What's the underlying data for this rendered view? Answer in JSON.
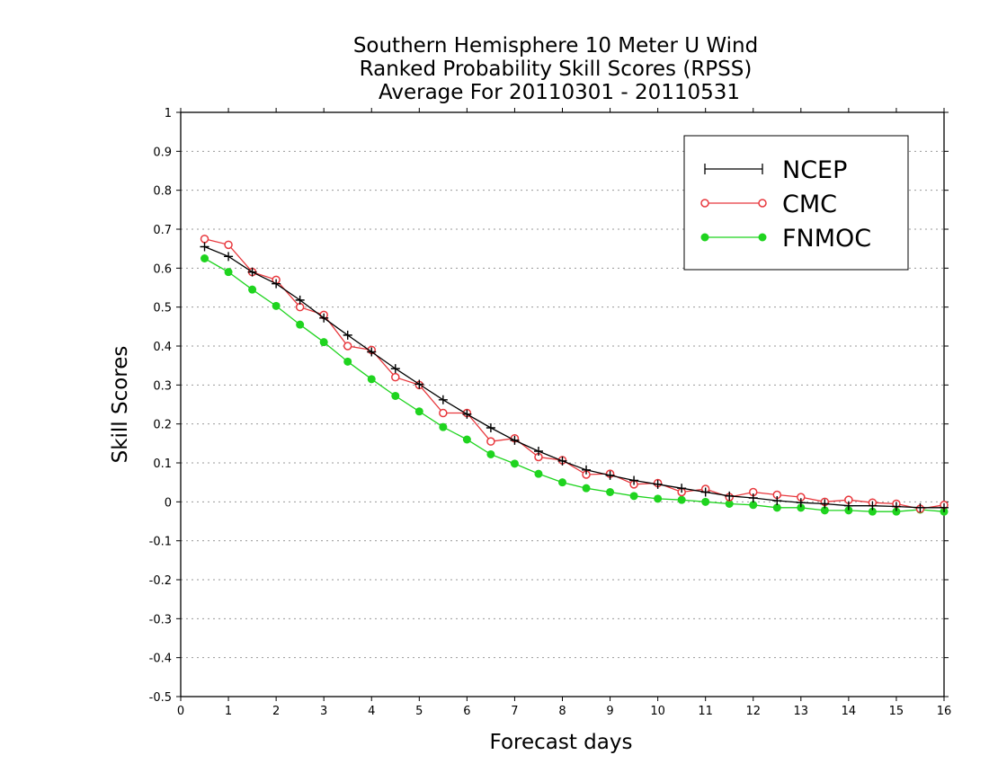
{
  "chart_data": {
    "type": "line",
    "title_lines": [
      "Southern Hemisphere 10 Meter U Wind",
      "Ranked Probability Skill Scores (RPSS)",
      "Average For 20110301 - 20110531"
    ],
    "xlabel": "Forecast days",
    "ylabel": "Skill Scores",
    "xlim": [
      0,
      16
    ],
    "ylim": [
      -0.5,
      1
    ],
    "xticks": [
      "0",
      "1",
      "2",
      "3",
      "4",
      "5",
      "6",
      "7",
      "8",
      "9",
      "10",
      "11",
      "12",
      "13",
      "14",
      "15",
      "16"
    ],
    "yticks": [
      "-0.5",
      "-0.4",
      "-0.3",
      "-0.2",
      "-0.1",
      "0",
      "0.1",
      "0.2",
      "0.3",
      "0.4",
      "0.5",
      "0.6",
      "0.7",
      "0.8",
      "0.9",
      "1"
    ],
    "grid": "horizontal-dotted",
    "legend_position": "top-right",
    "x": [
      0.5,
      1,
      1.5,
      2,
      2.5,
      3,
      3.5,
      4,
      4.5,
      5,
      5.5,
      6,
      6.5,
      7,
      7.5,
      8,
      8.5,
      9,
      9.5,
      10,
      10.5,
      11,
      11.5,
      12,
      12.5,
      13,
      13.5,
      14,
      14.5,
      15,
      15.5,
      16
    ],
    "series": [
      {
        "name": "NCEP",
        "color": "#000000",
        "marker": "plus",
        "values": [
          0.655,
          0.63,
          0.59,
          0.56,
          0.518,
          0.472,
          0.428,
          0.385,
          0.342,
          0.302,
          0.262,
          0.225,
          0.19,
          0.158,
          0.13,
          0.105,
          0.082,
          0.068,
          0.055,
          0.045,
          0.035,
          0.025,
          0.015,
          0.01,
          0.003,
          -0.002,
          -0.005,
          -0.01,
          -0.01,
          -0.012,
          -0.015,
          -0.015
        ]
      },
      {
        "name": "CMC",
        "color": "#e8383d",
        "marker": "open-circle",
        "values": [
          0.675,
          0.66,
          0.59,
          0.57,
          0.5,
          0.48,
          0.4,
          0.39,
          0.32,
          0.3,
          0.228,
          0.228,
          0.155,
          0.163,
          0.115,
          0.107,
          0.07,
          0.072,
          0.045,
          0.048,
          0.025,
          0.033,
          0.012,
          0.025,
          0.018,
          0.012,
          0.0,
          0.005,
          -0.002,
          -0.005,
          -0.018,
          -0.008
        ]
      },
      {
        "name": "FNMOC",
        "color": "#1fd41f",
        "marker": "filled-circle",
        "values": [
          0.625,
          0.59,
          0.545,
          0.503,
          0.455,
          0.41,
          0.36,
          0.315,
          0.272,
          0.232,
          0.192,
          0.16,
          0.122,
          0.098,
          0.072,
          0.05,
          0.035,
          0.025,
          0.015,
          0.008,
          0.005,
          0.0,
          -0.005,
          -0.008,
          -0.015,
          -0.015,
          -0.022,
          -0.022,
          -0.025,
          -0.025,
          -0.02,
          -0.025
        ]
      }
    ]
  }
}
